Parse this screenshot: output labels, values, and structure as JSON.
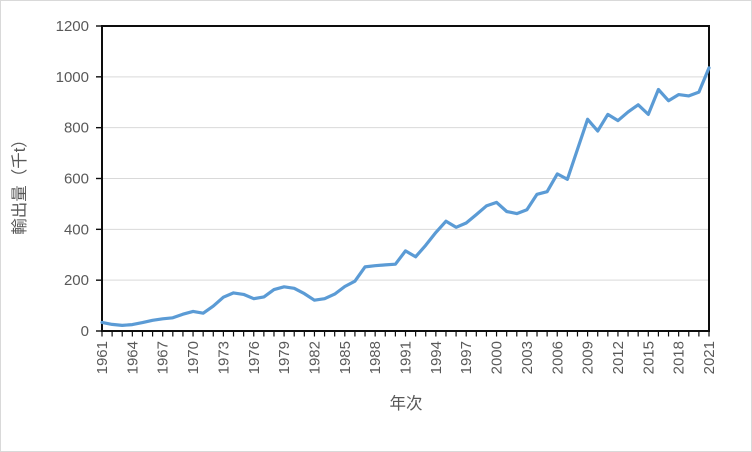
{
  "chart_data": {
    "type": "line",
    "title": "",
    "xlabel": "年次",
    "ylabel": "輸出量（千t）",
    "legend": "none",
    "grid": "horizontal-only",
    "ylim": [
      0,
      1200
    ],
    "y_ticks": [
      0,
      200,
      400,
      600,
      800,
      1000,
      1200
    ],
    "x_tick_labels": [
      1961,
      1964,
      1967,
      1970,
      1973,
      1976,
      1979,
      1982,
      1985,
      1988,
      1991,
      1994,
      1997,
      2000,
      2003,
      2006,
      2009,
      2012,
      2015,
      2018,
      2021
    ],
    "x": [
      1961,
      1962,
      1963,
      1964,
      1965,
      1966,
      1967,
      1968,
      1969,
      1970,
      1971,
      1972,
      1973,
      1974,
      1975,
      1976,
      1977,
      1978,
      1979,
      1980,
      1981,
      1982,
      1983,
      1984,
      1985,
      1986,
      1987,
      1988,
      1989,
      1990,
      1991,
      1992,
      1993,
      1994,
      1995,
      1996,
      1997,
      1998,
      1999,
      2000,
      2001,
      2002,
      2003,
      2004,
      2005,
      2006,
      2007,
      2008,
      2009,
      2010,
      2011,
      2012,
      2013,
      2014,
      2015,
      2016,
      2017,
      2018,
      2019,
      2020,
      2021
    ],
    "series": [
      {
        "name": "輸出量",
        "values": [
          34,
          26,
          22,
          25,
          33,
          42,
          48,
          52,
          66,
          77,
          70,
          98,
          133,
          150,
          144,
          127,
          134,
          163,
          174,
          168,
          147,
          121,
          127,
          145,
          175,
          196,
          252,
          257,
          260,
          263,
          315,
          292,
          337,
          388,
          432,
          408,
          425,
          458,
          492,
          506,
          470,
          462,
          477,
          538,
          548,
          618,
          597,
          715,
          833,
          787,
          852,
          828,
          862,
          890,
          852,
          950,
          906,
          930,
          925,
          940,
          1035
        ]
      }
    ],
    "colors": {
      "line": "#5B9BD5",
      "axis_text": "#595959",
      "gridline": "#D9D9D9",
      "axis_line": "#0D0D0D",
      "background": "#FFFFFF",
      "chart_border": "#D9D9D9"
    }
  }
}
